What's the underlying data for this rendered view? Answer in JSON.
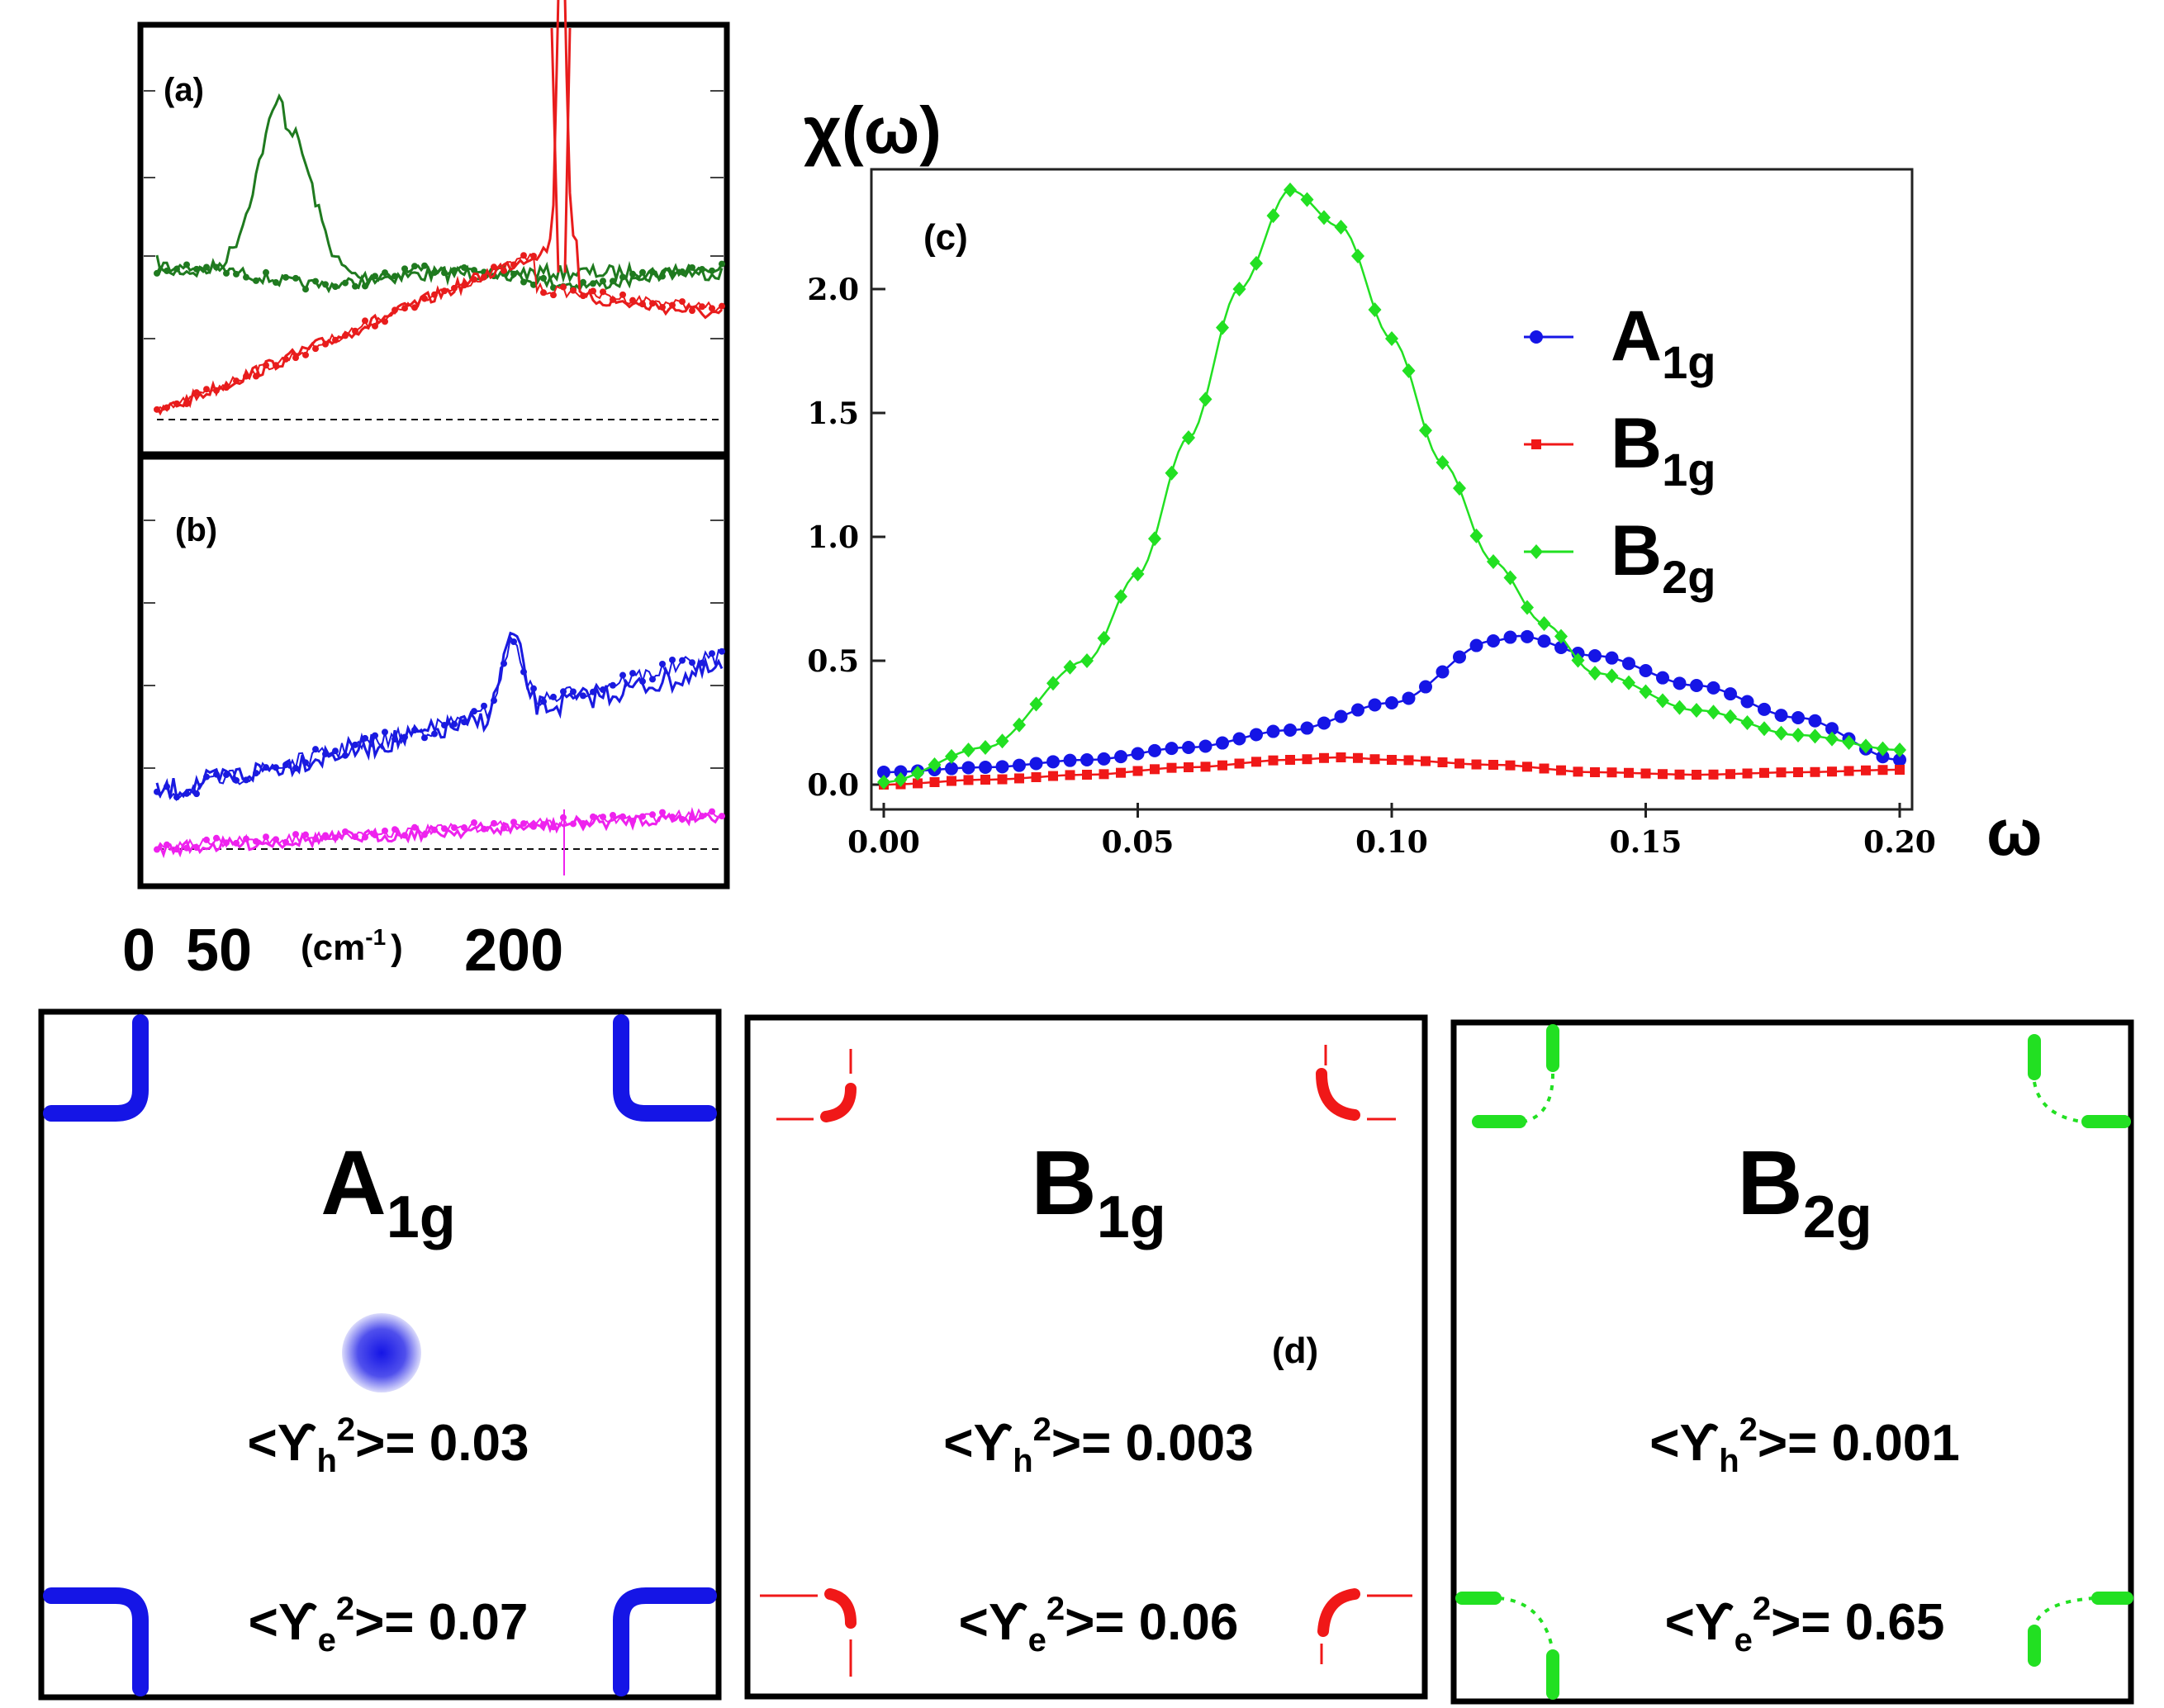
{
  "colors": {
    "A1g": "#1515e6",
    "B1g": "#f01818",
    "B2g": "#22e022",
    "a_green": "#1f7a1f",
    "a_red": "#e81c1c",
    "b_blue": "#1a1ae0",
    "b_magenta": "#ee22ee"
  },
  "panel_a": {
    "label": "(a)"
  },
  "panel_b": {
    "label": "(b)"
  },
  "panel_ab_axis": {
    "tick0": "0",
    "tick50": "50",
    "unit": "(cm",
    "unit_sup": "-1",
    "unit_close": ")",
    "tick200": "200"
  },
  "chart_data": [
    {
      "id": "panel_c",
      "type": "line",
      "label": "(c)",
      "ylabel": "χ(ω)",
      "xlabel": "ω",
      "xlim": [
        0.0,
        0.2
      ],
      "ylim": [
        -0.05,
        2.45
      ],
      "xticks": [
        0.0,
        0.05,
        0.1,
        0.15,
        0.2
      ],
      "xtick_labels": [
        "0.00",
        "0.05",
        "0.10",
        "0.15",
        "0.20"
      ],
      "yticks": [
        0.0,
        0.5,
        1.0,
        1.5,
        2.0
      ],
      "ytick_labels": [
        "0.0",
        "0.5",
        "1.0",
        "1.5",
        "2.0"
      ],
      "legend_position": "right",
      "series": [
        {
          "name": "A1g",
          "sym": "A",
          "sub": "1g",
          "marker": "circle",
          "color": "#1515e6",
          "x": [
            0.0,
            0.02,
            0.04,
            0.06,
            0.08,
            0.1,
            0.12,
            0.125,
            0.14,
            0.16,
            0.18,
            0.2
          ],
          "y": [
            0.05,
            0.07,
            0.1,
            0.15,
            0.22,
            0.33,
            0.58,
            0.6,
            0.52,
            0.4,
            0.27,
            0.1
          ]
        },
        {
          "name": "B1g",
          "sym": "B",
          "sub": "1g",
          "marker": "square",
          "color": "#f01818",
          "x": [
            0.0,
            0.02,
            0.04,
            0.06,
            0.08,
            0.09,
            0.1,
            0.12,
            0.14,
            0.16,
            0.18,
            0.2
          ],
          "y": [
            0.0,
            0.02,
            0.04,
            0.07,
            0.1,
            0.11,
            0.1,
            0.08,
            0.05,
            0.04,
            0.05,
            0.06
          ]
        },
        {
          "name": "B2g",
          "sym": "B",
          "sub": "2g",
          "marker": "diamond",
          "color": "#22e022",
          "x": [
            0.0,
            0.02,
            0.04,
            0.05,
            0.06,
            0.07,
            0.08,
            0.09,
            0.1,
            0.11,
            0.12,
            0.13,
            0.14,
            0.16,
            0.18,
            0.2
          ],
          "y": [
            0.01,
            0.15,
            0.5,
            0.85,
            1.4,
            2.0,
            2.4,
            2.25,
            1.8,
            1.3,
            0.9,
            0.65,
            0.45,
            0.3,
            0.2,
            0.14
          ]
        }
      ]
    }
  ],
  "panel_d": {
    "label": "(d)",
    "boxes": [
      {
        "sym": "A",
        "sub": "1g",
        "h_pre": "<ϒ",
        "h_sub": "h",
        "h_sup": "2",
        "h_post": ">= 0.03",
        "e_pre": "<ϒ",
        "e_sub": "e",
        "e_sup": "2",
        "e_post": ">= 0.07"
      },
      {
        "sym": "B",
        "sub": "1g",
        "h_pre": "<ϒ",
        "h_sub": "h",
        "h_sup": "2",
        "h_post": ">= 0.003",
        "e_pre": "<ϒ",
        "e_sub": "e",
        "e_sup": "2",
        "e_post": ">= 0.06"
      },
      {
        "sym": "B",
        "sub": "2g",
        "h_pre": "<ϒ",
        "h_sub": "h",
        "h_sup": "2",
        "h_post": ">= 0.001",
        "e_pre": "<ϒ",
        "e_sub": "e",
        "e_sup": "2",
        "e_post": ">= 0.65"
      }
    ]
  }
}
